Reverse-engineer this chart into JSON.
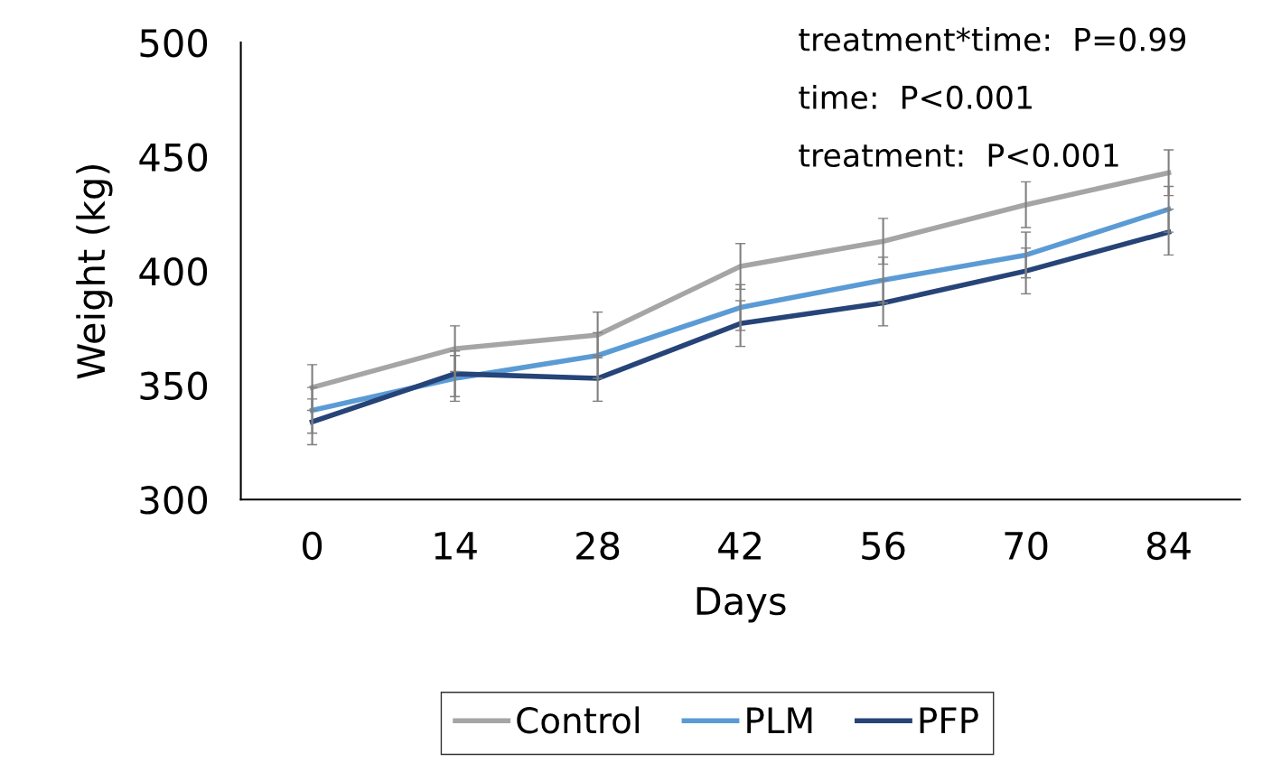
{
  "chart_data": {
    "type": "line",
    "xlabel": "Days",
    "ylabel": "Weight (kg)",
    "categories": [
      "0",
      "14",
      "28",
      "42",
      "56",
      "70",
      "84"
    ],
    "series": [
      {
        "name": "Control",
        "color": "#a5a5a5",
        "values": [
          349,
          366,
          372,
          402,
          413,
          429,
          443
        ],
        "errors": [
          10,
          10,
          10,
          10,
          10,
          10,
          10
        ]
      },
      {
        "name": "PLM",
        "color": "#5b9bd5",
        "values": [
          339,
          353,
          363,
          384,
          396,
          407,
          427
        ],
        "errors": [
          10,
          10,
          10,
          10,
          10,
          10,
          10
        ]
      },
      {
        "name": "PFP",
        "color": "#264478",
        "values": [
          334,
          355,
          353,
          377,
          386,
          400,
          417
        ],
        "errors": [
          10,
          10,
          10,
          10,
          10,
          10,
          10
        ]
      }
    ],
    "ylim": [
      300,
      500
    ],
    "yticks": [
      300,
      350,
      400,
      450,
      500
    ],
    "grid": false,
    "legend": "bottom",
    "marker": "none",
    "line_style": "solid",
    "annotations": [
      "treatment*time:  P=0.99",
      "time:  P<0.001",
      "treatment:  P<0.001"
    ]
  }
}
